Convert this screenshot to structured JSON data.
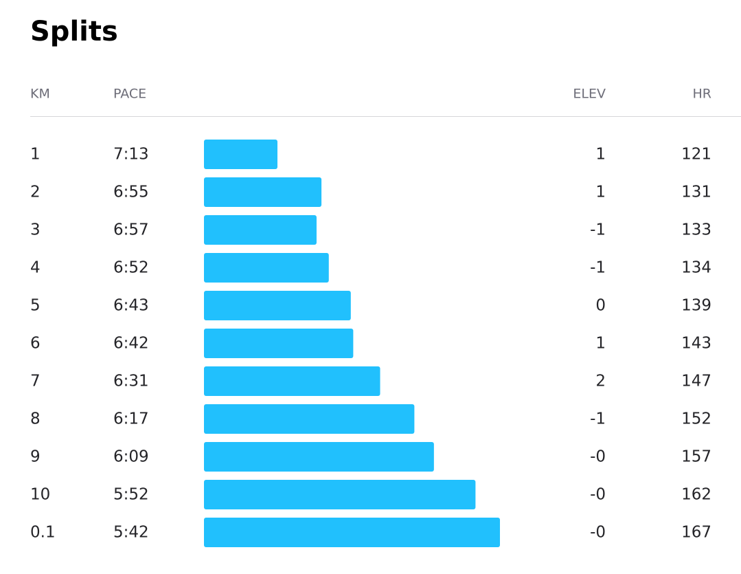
{
  "header": {
    "title": "Splits"
  },
  "table": {
    "columns": [
      "KM",
      "PACE",
      "ELEV",
      "HR"
    ],
    "rows": [
      {
        "km": 1,
        "pace": {
          "value": 433,
          "label": "7:13"
        },
        "elev": "1",
        "hr": 121
      },
      {
        "km": 2,
        "pace": {
          "value": 415,
          "label": "6:55"
        },
        "elev": "1",
        "hr": 131
      },
      {
        "km": 3,
        "pace": {
          "value": 417,
          "label": "6:57"
        },
        "elev": "-1",
        "hr": 133
      },
      {
        "km": 4,
        "pace": {
          "value": 412,
          "label": "6:52"
        },
        "elev": "-1",
        "hr": 134
      },
      {
        "km": 5,
        "pace": {
          "value": 403,
          "label": "6:43"
        },
        "elev": "0",
        "hr": 139
      },
      {
        "km": 6,
        "pace": {
          "value": 402,
          "label": "6:42"
        },
        "elev": "1",
        "hr": 143
      },
      {
        "km": 7,
        "pace": {
          "value": 391,
          "label": "6:31"
        },
        "elev": "2",
        "hr": 147
      },
      {
        "km": 8,
        "pace": {
          "value": 377,
          "label": "6:17"
        },
        "elev": "-1",
        "hr": 152
      },
      {
        "km": 9,
        "pace": {
          "value": 369,
          "label": "6:09"
        },
        "elev": "-0",
        "hr": 157
      },
      {
        "km": 10,
        "pace": {
          "value": 352,
          "label": "5:52"
        },
        "elev": "-0",
        "hr": 162
      },
      {
        "km": 0.1,
        "pace": {
          "value": 342,
          "label": "5:42"
        },
        "elev": "-0",
        "hr": 167
      }
    ],
    "bar_color": "#21c0fd"
  }
}
